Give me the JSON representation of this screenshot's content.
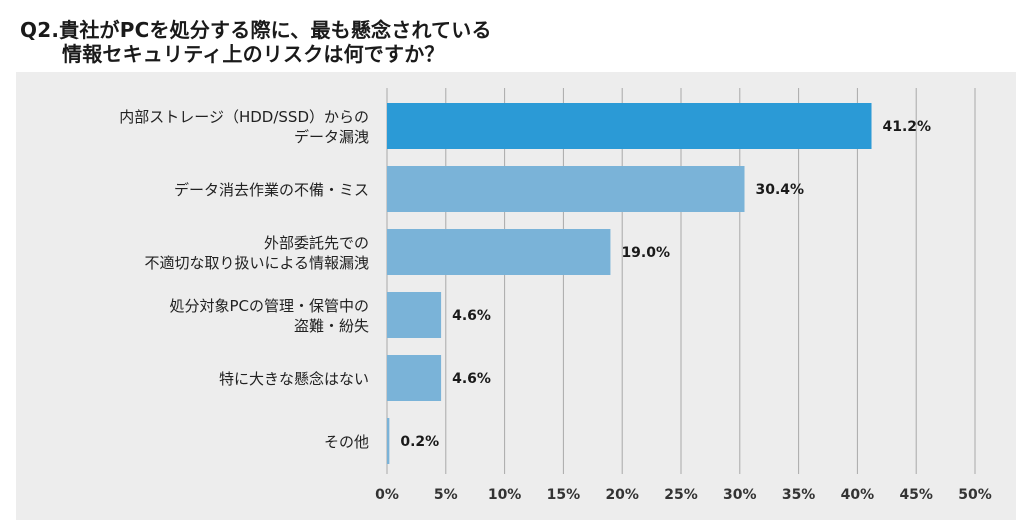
{
  "title_line1": "Q2.貴社がPCを処分する際に、最も懸念されている",
  "title_line2": "情報セキュリティ上のリスクは何ですか？",
  "chart_data": {
    "type": "bar",
    "orientation": "horizontal",
    "categories": [
      [
        "内部ストレージ（HDD/SSD）からの",
        "データ漏洩"
      ],
      [
        "データ消去作業の不備・ミス"
      ],
      [
        "外部委託先での",
        "不適切な取り扱いによる情報漏洩"
      ],
      [
        "処分対象PCの管理・保管中の",
        "盗難・紛失"
      ],
      [
        "特に大きな懸念はない"
      ],
      [
        "その他"
      ]
    ],
    "values": [
      41.2,
      30.4,
      19.0,
      4.6,
      4.6,
      0.2
    ],
    "value_labels": [
      "41.2%",
      "30.4%",
      "19.0%",
      "4.6%",
      "4.6%",
      "0.2%"
    ],
    "xlim": [
      0,
      50
    ],
    "xticks": [
      "0%",
      "5%",
      "10%",
      "15%",
      "20%",
      "25%",
      "30%",
      "35%",
      "40%",
      "45%",
      "50%"
    ],
    "grid": true,
    "colors": {
      "highlight": "#2b9ad6",
      "default": "#7ab3d8",
      "grid": "#a9a9a9",
      "panel": "#ededed"
    }
  }
}
